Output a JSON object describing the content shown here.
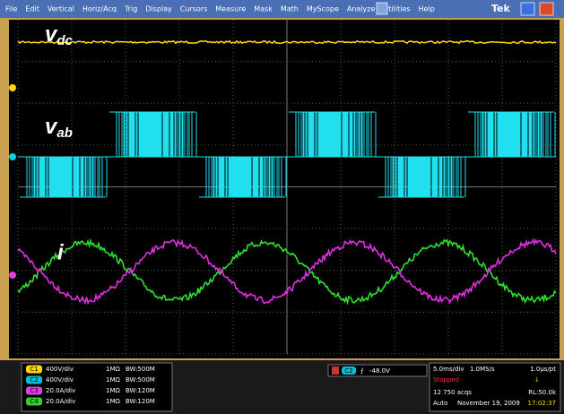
{
  "menu": {
    "items": [
      "File",
      "Edit",
      "Vertical",
      "Horiz/Acq",
      "Trig",
      "Display",
      "Cursors",
      "Measure",
      "Mask",
      "Math",
      "MyScope",
      "Analyze",
      "Utilities",
      "Help"
    ],
    "brand": "Tek"
  },
  "labels": [
    {
      "text": "v",
      "sub": "dc"
    },
    {
      "text": "v",
      "sub": "ab"
    },
    {
      "text": "i",
      "sub": ""
    }
  ],
  "channels": [
    {
      "id": "C1",
      "scale": "400V/div",
      "impedance": "1MΩ",
      "bandwidth": "BW:500M"
    },
    {
      "id": "C2",
      "scale": "400V/div",
      "impedance": "1MΩ",
      "bandwidth": "BW:500M"
    },
    {
      "id": "C3",
      "scale": "20.0A/div",
      "impedance": "1MΩ",
      "bandwidth": "BW:120M"
    },
    {
      "id": "C4",
      "scale": "20.0A/div",
      "impedance": "1MΩ",
      "bandwidth": "BW:120M"
    }
  ],
  "trigger": {
    "source": "C2",
    "level": "-48.0V"
  },
  "acquisition": {
    "timebase": "5.0ms/div",
    "sample_rate": "1.0MS/s",
    "resolution": "1.0µs/pt",
    "state": "Stopped",
    "acqs": "12 750 acqs",
    "record_length": "RL:50.0k",
    "mode": "Auto",
    "date": "November 19, 2009",
    "time": "17:02:37"
  }
}
